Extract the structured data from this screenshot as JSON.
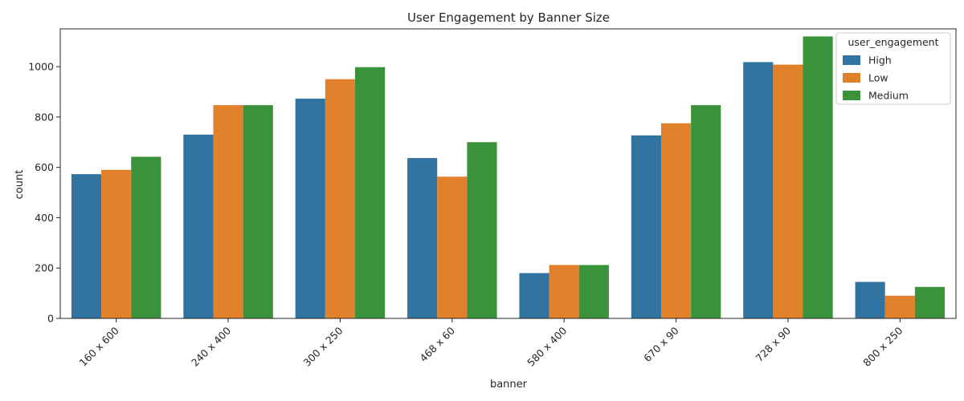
{
  "chart_data": {
    "type": "bar",
    "title": "User Engagement by Banner Size",
    "xlabel": "banner",
    "ylabel": "count",
    "ylim": [
      0,
      1150
    ],
    "yticks": [
      0,
      200,
      400,
      600,
      800,
      1000
    ],
    "categories": [
      "160 x 600",
      "240 x 400",
      "300 x 250",
      "468 x 60",
      "580 x 400",
      "670 x 90",
      "728 x 90",
      "800 x 250"
    ],
    "legend": {
      "title": "user_engagement",
      "placement": "top-right"
    },
    "series": [
      {
        "name": "High",
        "color": "#3274a1",
        "values": [
          573,
          730,
          873,
          637,
          180,
          727,
          1018,
          145
        ]
      },
      {
        "name": "Low",
        "color": "#e1812c",
        "values": [
          590,
          847,
          950,
          563,
          212,
          775,
          1008,
          90
        ]
      },
      {
        "name": "Medium",
        "color": "#3a923a",
        "values": [
          642,
          847,
          998,
          700,
          212,
          847,
          1120,
          125
        ]
      }
    ],
    "grid": false
  }
}
